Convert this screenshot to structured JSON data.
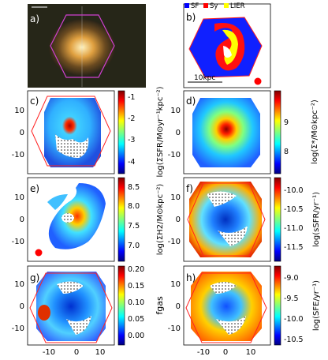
{
  "panels": {
    "a": {
      "label": "a)"
    },
    "b": {
      "label": "b)",
      "legend": [
        {
          "name": "SF",
          "color": "#0000ff"
        },
        {
          "name": "Sy",
          "color": "#ff0000"
        },
        {
          "name": "LIER",
          "color": "#ffff00"
        }
      ],
      "scalebar_label": "10kpc"
    },
    "c": {
      "label": "c)",
      "ticks": [
        "-1",
        "-2",
        "-3",
        "-4"
      ]
    },
    "d": {
      "label": "d)",
      "ticks": [
        "9",
        "8"
      ]
    },
    "e": {
      "label": "e)",
      "ticks": [
        "8.5",
        "8.0",
        "7.5",
        "7.0"
      ]
    },
    "f": {
      "label": "f)",
      "ticks": [
        "-10.0",
        "-10.5",
        "-11.0",
        "-11.5"
      ]
    },
    "g": {
      "label": "g)",
      "ticks": [
        "0.20",
        "0.15",
        "0.10",
        "0.05",
        "0.00"
      ]
    },
    "h": {
      "label": "h)",
      "ticks": [
        "-9.0",
        "-9.5",
        "-10.0",
        "-10.5"
      ]
    }
  },
  "axis_ticks": {
    "y": [
      "10",
      "0",
      "-10"
    ],
    "x": [
      "-10",
      "0",
      "10"
    ]
  },
  "colorbar_labels": {
    "c": {
      "prefix": "log(",
      "num": "ΣSFR",
      "den": "M⊙yr⁻¹kpc⁻²",
      "suffix": ")"
    },
    "d": {
      "prefix": "log(",
      "num": "Σ*",
      "den": "M⊙kpc⁻²",
      "suffix": ")"
    },
    "e": {
      "prefix": "log(",
      "num": "ΣH2",
      "den": "M⊙kpc⁻²",
      "suffix": ")"
    },
    "f": {
      "prefix": "log(",
      "num": "sSFR",
      "den": "yr⁻¹",
      "suffix": ")"
    },
    "g": {
      "text": "fgas"
    },
    "h": {
      "prefix": "log(",
      "num": "SFE",
      "den": "yr⁻¹",
      "suffix": ")"
    }
  },
  "colors": {
    "hexagon": "#ff2020",
    "hexagon_galaxy": "#d040d0",
    "beam": "#ff0000"
  }
}
